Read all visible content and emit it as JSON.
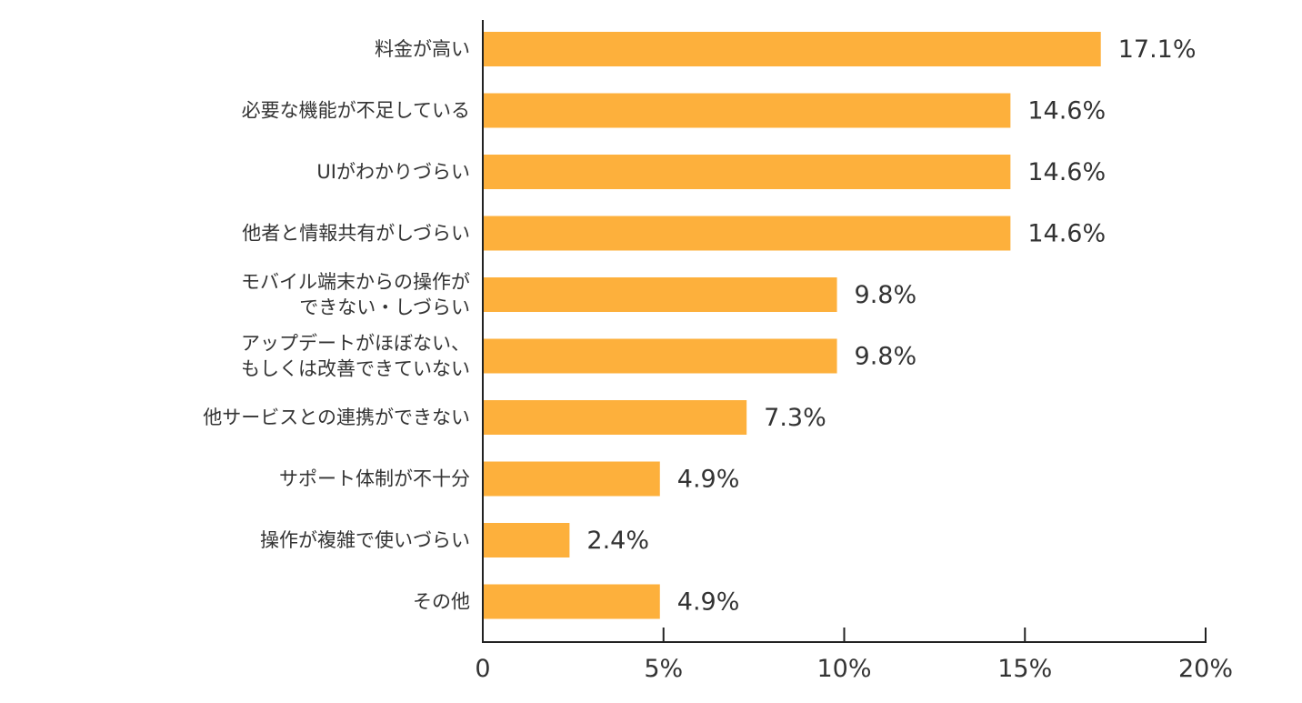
{
  "colors": {
    "bar": "#fdb03c",
    "axis": "#222222",
    "text": "#333333",
    "background": "#ffffff"
  },
  "chart_data": {
    "type": "bar",
    "orientation": "horizontal",
    "title": "",
    "xlabel": "",
    "ylabel": "",
    "xlim": [
      0,
      20
    ],
    "grid": false,
    "legend": "none",
    "x_ticks": [
      {
        "value": 0,
        "label": "0"
      },
      {
        "value": 5,
        "label": "5%"
      },
      {
        "value": 10,
        "label": "10%"
      },
      {
        "value": 15,
        "label": "15%"
      },
      {
        "value": 20,
        "label": "20%"
      }
    ],
    "categories": [
      [
        "料金が高い"
      ],
      [
        "必要な機能が不足している"
      ],
      [
        "UIがわかりづらい"
      ],
      [
        "他者と情報共有がしづらい"
      ],
      [
        "モバイル端末からの操作が",
        "できない・しづらい"
      ],
      [
        "アップデートがほぼない、",
        "もしくは改善できていない"
      ],
      [
        "他サービスとの連携ができない"
      ],
      [
        "サポート体制が不十分"
      ],
      [
        "操作が複雑で使いづらい"
      ],
      [
        "その他"
      ]
    ],
    "values": [
      17.1,
      14.6,
      14.6,
      14.6,
      9.8,
      9.8,
      7.3,
      4.9,
      2.4,
      4.9
    ],
    "value_labels": [
      "17.1%",
      "14.6%",
      "14.6%",
      "14.6%",
      "9.8%",
      "9.8%",
      "7.3%",
      "4.9%",
      "2.4%",
      "4.9%"
    ]
  }
}
